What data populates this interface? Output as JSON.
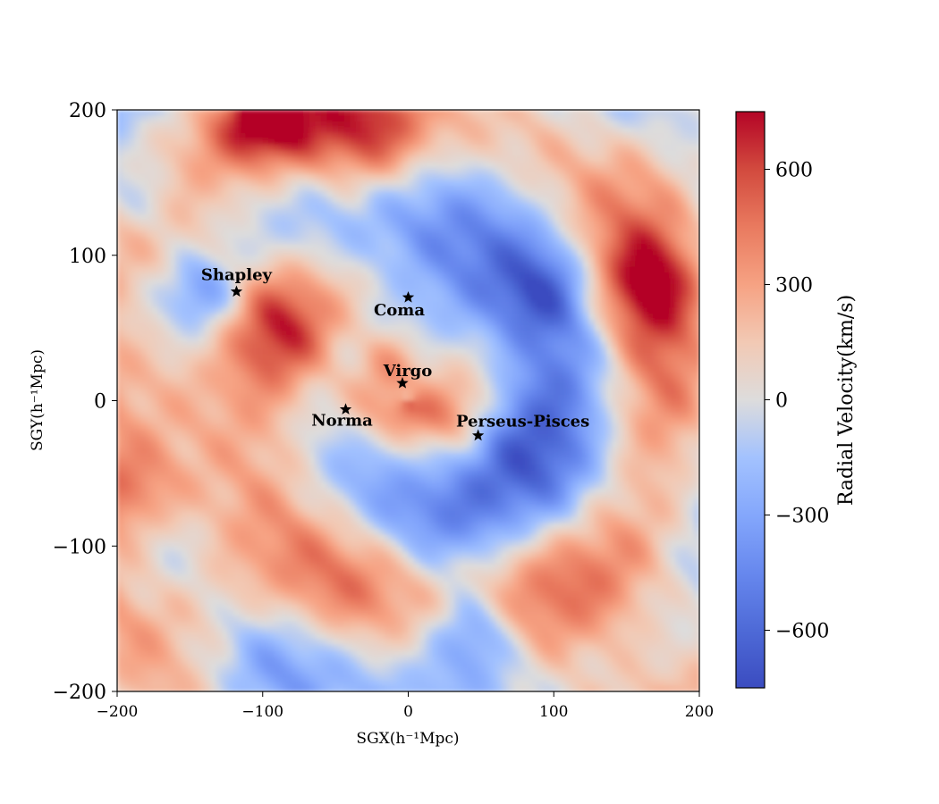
{
  "chart_data": {
    "type": "heatmap",
    "title": "",
    "xlabel": "SGX(h⁻¹Mpc)",
    "ylabel": "SGY(h⁻¹Mpc)",
    "xlim": [
      -200,
      200
    ],
    "ylim": [
      -200,
      200
    ],
    "x_ticks": [
      -200,
      -100,
      0,
      100,
      200
    ],
    "y_ticks": [
      -200,
      -100,
      0,
      100,
      200
    ],
    "x_tick_labels": [
      "−200",
      "−100",
      "0",
      "100",
      "200"
    ],
    "y_tick_labels": [
      "−200",
      "−100",
      "0",
      "100",
      "200"
    ],
    "colorbar": {
      "label": "Radial Velocity(km/s)",
      "vmin": -750,
      "vmax": 750,
      "colormap": "coolwarm",
      "ticks": [
        -600,
        -300,
        0,
        300,
        600
      ],
      "tick_labels": [
        "−600",
        "−300",
        "0",
        "300",
        "600"
      ]
    },
    "colors": {
      "cold": "#3b4cc0",
      "neutral": "#dddcdc",
      "warm": "#b40426"
    },
    "annotations": [
      {
        "name": "Shapley",
        "x": -118,
        "y": 75
      },
      {
        "name": "Coma",
        "x": 0,
        "y": 71
      },
      {
        "name": "Virgo",
        "x": -4,
        "y": 12
      },
      {
        "name": "Norma",
        "x": -43,
        "y": -6
      },
      {
        "name": "Perseus-Pisces",
        "x": 48,
        "y": -24
      }
    ],
    "grid": false,
    "marker": "star"
  }
}
